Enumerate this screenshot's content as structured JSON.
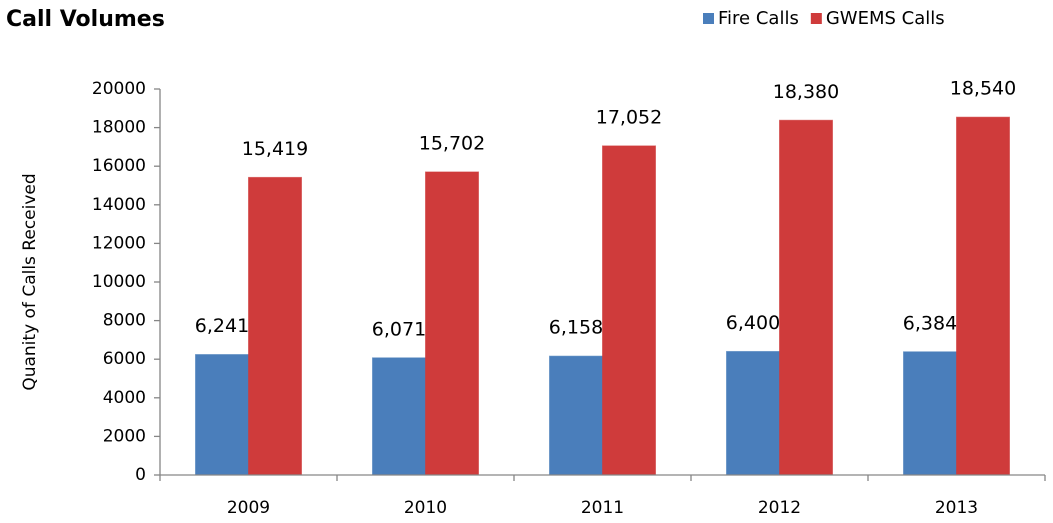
{
  "chart_data": {
    "type": "bar",
    "title": "Call Volumes",
    "y_axis_label": "Quanity of Calls Received",
    "categories": [
      "2009",
      "2010",
      "2011",
      "2012",
      "2013"
    ],
    "series": [
      {
        "name": "Fire Calls",
        "color": "#4a7ebb",
        "values": [
          6241,
          6071,
          6158,
          6400,
          6384
        ],
        "value_labels": [
          "6,241",
          "6,071",
          "6,158",
          "6,400",
          "6,384"
        ]
      },
      {
        "name": "GWEMS Calls",
        "color": "#cf3b3b",
        "values": [
          15419,
          15702,
          17052,
          18380,
          18540
        ],
        "value_labels": [
          "15,419",
          "15,702",
          "17,052",
          "18,380",
          "18,540"
        ]
      }
    ],
    "ylim": [
      0,
      20000
    ],
    "yticks": [
      0,
      2000,
      4000,
      6000,
      8000,
      10000,
      12000,
      14000,
      16000,
      18000,
      20000
    ],
    "grid": false,
    "legend": "top-right"
  }
}
